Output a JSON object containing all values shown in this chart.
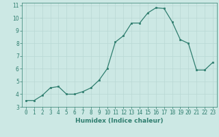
{
  "x": [
    0,
    1,
    2,
    3,
    4,
    5,
    6,
    7,
    8,
    9,
    10,
    11,
    12,
    13,
    14,
    15,
    16,
    17,
    18,
    19,
    20,
    21,
    22,
    23
  ],
  "y": [
    3.5,
    3.5,
    3.9,
    4.5,
    4.6,
    4.0,
    4.0,
    4.2,
    4.5,
    5.1,
    6.0,
    8.1,
    8.6,
    9.6,
    9.6,
    10.4,
    10.8,
    10.75,
    9.7,
    8.3,
    8.0,
    5.9,
    5.9,
    6.5
  ],
  "line_color": "#2e7d6e",
  "marker": "s",
  "markersize": 1.8,
  "linewidth": 0.9,
  "xlabel": "Humidex (Indice chaleur)",
  "xlim": [
    -0.5,
    23.5
  ],
  "ylim": [
    3.0,
    11.2
  ],
  "yticks": [
    3,
    4,
    5,
    6,
    7,
    8,
    9,
    10,
    11
  ],
  "xticks": [
    0,
    1,
    2,
    3,
    4,
    5,
    6,
    7,
    8,
    9,
    10,
    11,
    12,
    13,
    14,
    15,
    16,
    17,
    18,
    19,
    20,
    21,
    22,
    23
  ],
  "bg_color": "#cce8e4",
  "grid_color": "#b8d8d4",
  "line_border_color": "#2e7d6e",
  "tick_color": "#2e7d6e",
  "label_color": "#2e7d6e",
  "xlabel_fontsize": 6.5,
  "tick_fontsize": 5.5
}
